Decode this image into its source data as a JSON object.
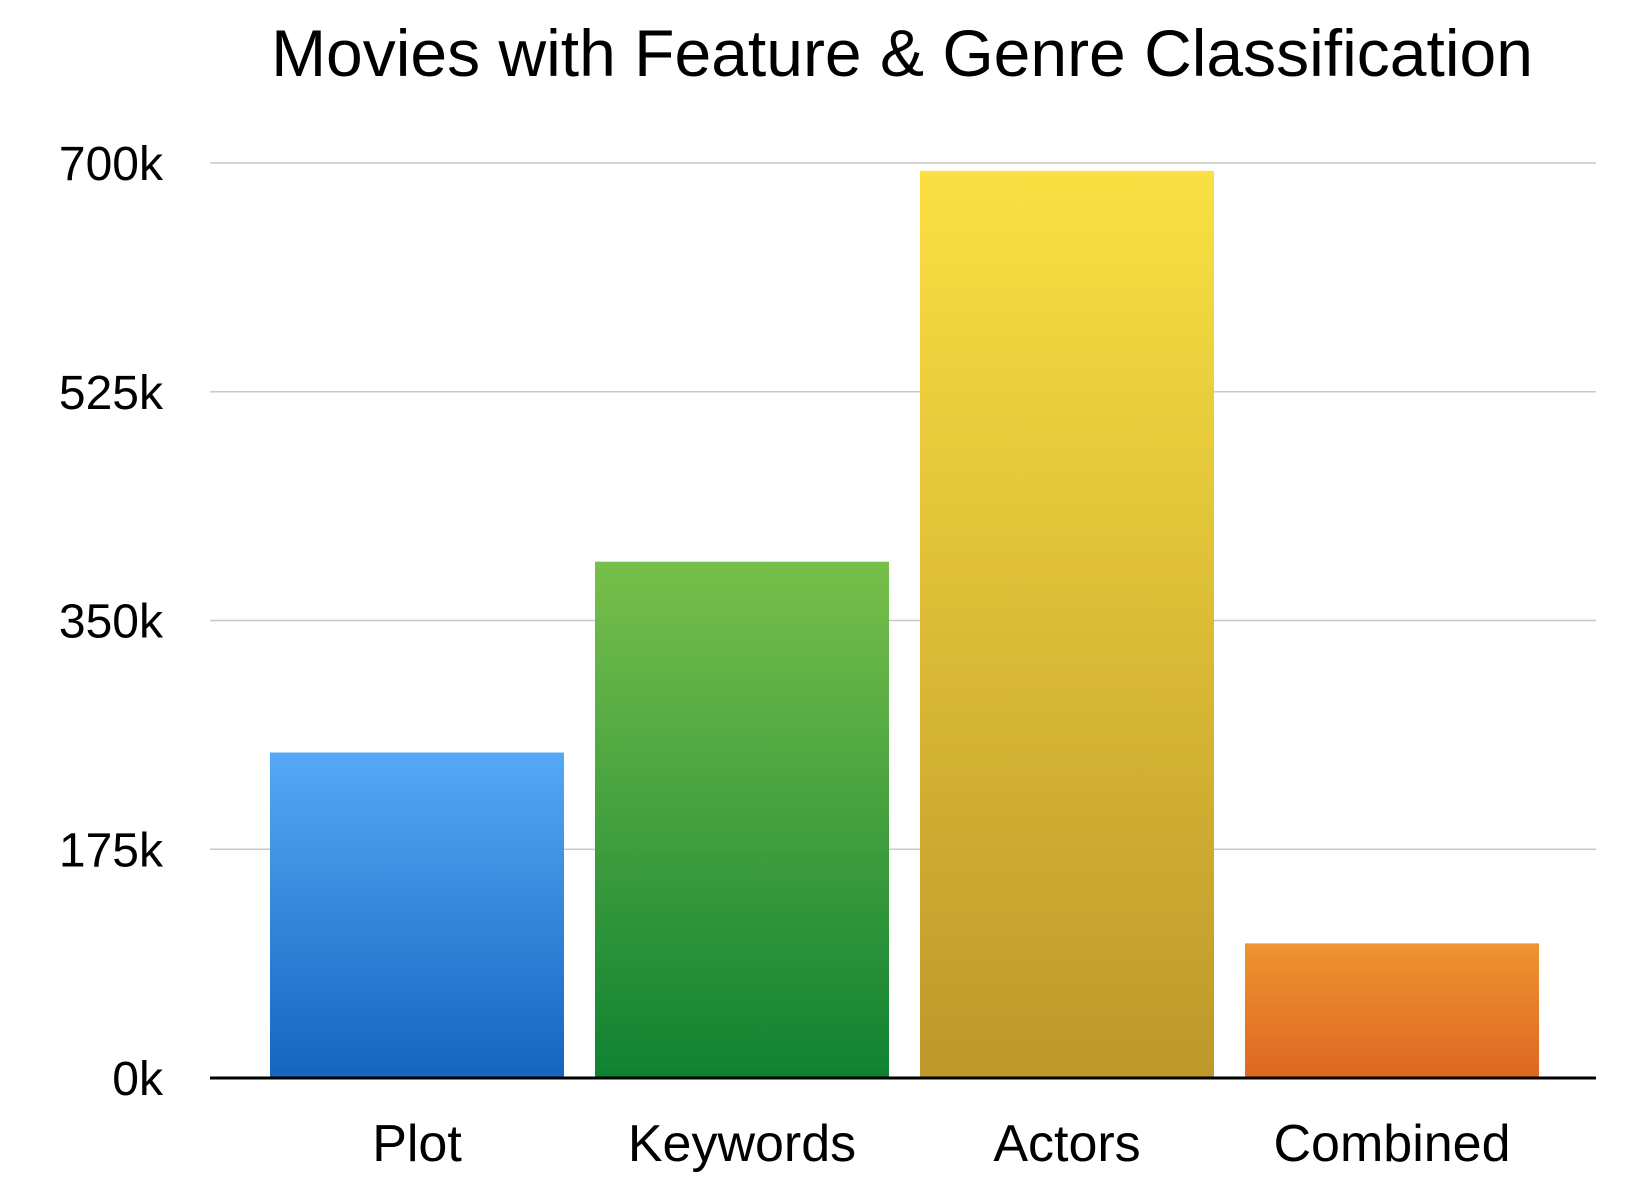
{
  "chart_data": {
    "type": "bar",
    "title": "Movies with Feature & Genre Classification",
    "xlabel": "",
    "ylabel": "",
    "categories": [
      "Plot",
      "Keywords",
      "Actors",
      "Combined"
    ],
    "values": [
      249000,
      395000,
      694000,
      103000
    ],
    "ylim": [
      0,
      700000
    ],
    "yticks": [
      0,
      175000,
      350000,
      525000,
      700000
    ],
    "ytick_labels": [
      "0k",
      "175k",
      "350k",
      "525k",
      "700k"
    ],
    "grid": true,
    "legend": "none",
    "colors": [
      {
        "top": "#55a8f5",
        "bottom": "#1565c0"
      },
      {
        "top": "#78bf4b",
        "bottom": "#0f8232"
      },
      {
        "top": "#fae042",
        "bottom": "#bd982b"
      },
      {
        "top": "#ee9530",
        "bottom": "#de6622"
      }
    ]
  }
}
